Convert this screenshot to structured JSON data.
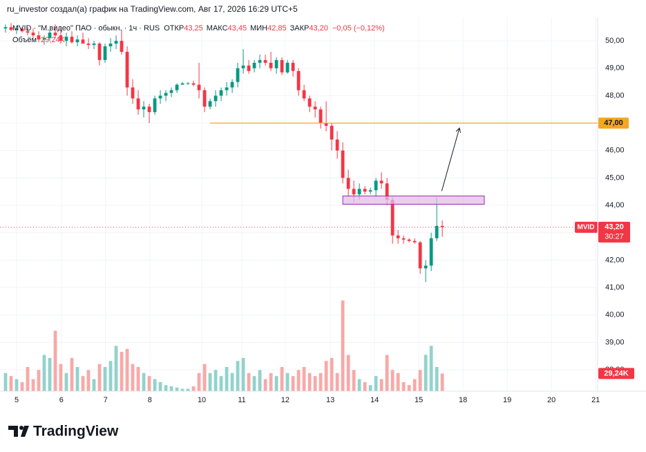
{
  "header": {
    "title": "ru_investor создал(а) график на TradingView.com, Авг 17, 2026 16:29 UTC+5",
    "symbol": "MVID · \"М.видео\" ПАО · обыкн. · 1ч · RUS",
    "ohlc": [
      {
        "label": "ОТКР",
        "value": "43,25"
      },
      {
        "label": "МАКС",
        "value": "43,45"
      },
      {
        "label": "МИН",
        "value": "42,85"
      },
      {
        "label": "ЗАКР",
        "value": "43,20"
      }
    ],
    "change": "−0,05 (−0,12%)",
    "volume_label": "Объём",
    "volume_value": "29,24K"
  },
  "chart_data": {
    "type": "candlestick",
    "x": [
      0,
      1,
      2,
      3,
      4,
      5,
      6,
      7,
      8,
      9,
      10,
      11,
      12,
      13,
      14,
      15,
      16,
      17,
      18,
      19,
      20,
      21,
      22,
      23,
      24,
      25,
      26,
      27,
      28,
      29,
      30,
      31,
      32,
      33,
      34,
      35,
      36,
      37,
      38,
      39,
      40,
      41,
      42,
      43,
      44,
      45,
      46,
      47,
      48,
      49,
      50,
      51,
      52,
      53,
      54,
      55,
      56,
      57,
      58,
      59,
      60,
      61,
      62,
      63,
      64,
      65,
      66,
      67,
      68,
      69,
      70,
      71,
      72,
      73,
      74,
      75,
      76,
      77,
      78,
      79
    ],
    "open": [
      50.45,
      50.5,
      50.4,
      50.45,
      50.35,
      50.3,
      50.2,
      50.05,
      50.1,
      50.3,
      50.2,
      50.0,
      50.15,
      49.95,
      50.05,
      49.9,
      49.85,
      49.9,
      49.3,
      49.8,
      49.9,
      50.0,
      49.6,
      48.3,
      47.9,
      47.5,
      47.6,
      47.4,
      47.9,
      48.0,
      48.1,
      48.2,
      48.4,
      48.45,
      48.45,
      48.4,
      48.2,
      47.6,
      47.8,
      48.0,
      48.2,
      48.3,
      48.5,
      49.0,
      49.1,
      49.0,
      49.2,
      49.3,
      49.2,
      49.0,
      49.3,
      48.85,
      49.2,
      48.9,
      48.2,
      47.9,
      47.6,
      47.5,
      47.0,
      46.9,
      46.4,
      46.0,
      45.0,
      44.6,
      44.4,
      44.6,
      44.5,
      44.55,
      44.9,
      44.8,
      44.2,
      42.9,
      42.8,
      42.75,
      42.7,
      42.65,
      41.7,
      41.8,
      42.8,
      43.25
    ],
    "high": [
      50.6,
      50.65,
      50.55,
      50.5,
      50.5,
      50.45,
      50.35,
      50.2,
      50.4,
      50.6,
      50.5,
      50.3,
      50.35,
      50.2,
      50.3,
      50.1,
      50.0,
      49.95,
      49.9,
      50.1,
      50.2,
      50.4,
      49.8,
      48.6,
      48.2,
      47.8,
      47.7,
      48.0,
      48.2,
      48.2,
      48.3,
      48.45,
      48.5,
      48.5,
      48.55,
      49.2,
      48.3,
      47.9,
      48.2,
      48.3,
      48.5,
      48.6,
      49.2,
      49.7,
      49.3,
      49.3,
      49.5,
      49.5,
      49.6,
      49.4,
      49.4,
      49.3,
      49.3,
      49.0,
      48.4,
      48.0,
      47.8,
      47.6,
      47.8,
      47.0,
      46.7,
      46.3,
      45.3,
      44.9,
      44.8,
      44.7,
      44.65,
      45.0,
      45.2,
      45.0,
      44.3,
      43.1,
      42.9,
      42.8,
      42.8,
      42.7,
      42.0,
      43.0,
      44.3,
      43.45
    ],
    "low": [
      50.3,
      50.35,
      50.25,
      50.3,
      50.2,
      50.1,
      49.95,
      49.85,
      50.0,
      50.1,
      49.9,
      49.8,
      49.9,
      49.8,
      49.9,
      49.7,
      49.7,
      49.1,
      49.2,
      49.6,
      49.7,
      49.5,
      48.0,
      47.7,
      47.3,
      47.2,
      47.0,
      47.3,
      47.7,
      47.8,
      47.95,
      48.1,
      48.4,
      48.4,
      48.35,
      47.9,
      47.4,
      47.5,
      47.6,
      47.8,
      48.0,
      48.1,
      48.3,
      48.8,
      48.8,
      48.85,
      49.0,
      49.1,
      48.9,
      48.8,
      48.75,
      48.8,
      48.7,
      48.0,
      47.8,
      47.4,
      47.2,
      46.8,
      46.7,
      46.0,
      45.7,
      44.8,
      44.3,
      44.1,
      44.2,
      44.4,
      44.4,
      44.3,
      44.6,
      44.0,
      42.6,
      42.6,
      42.6,
      42.65,
      42.6,
      41.5,
      41.2,
      41.6,
      42.7,
      42.85
    ],
    "close": [
      50.5,
      50.4,
      50.45,
      50.35,
      50.3,
      50.2,
      50.05,
      50.1,
      50.3,
      50.2,
      50.0,
      50.15,
      49.95,
      50.05,
      49.9,
      49.85,
      49.9,
      49.3,
      49.8,
      49.9,
      50.0,
      49.6,
      48.3,
      47.9,
      47.5,
      47.6,
      47.4,
      47.9,
      48.0,
      48.1,
      48.2,
      48.4,
      48.45,
      48.45,
      48.4,
      48.2,
      47.6,
      47.8,
      48.0,
      48.2,
      48.3,
      48.5,
      49.0,
      49.1,
      48.9,
      49.2,
      49.3,
      49.2,
      49.0,
      49.3,
      48.85,
      49.2,
      48.9,
      48.2,
      47.9,
      47.6,
      47.5,
      47.0,
      46.9,
      46.4,
      46.0,
      45.0,
      44.6,
      44.4,
      44.6,
      44.5,
      44.55,
      44.9,
      44.8,
      44.2,
      42.9,
      42.8,
      42.75,
      42.7,
      42.65,
      41.7,
      41.8,
      42.8,
      43.25,
      43.2
    ],
    "volume": [
      30,
      25,
      20,
      15,
      40,
      20,
      35,
      60,
      55,
      100,
      45,
      30,
      55,
      40,
      25,
      35,
      20,
      45,
      40,
      50,
      75,
      65,
      70,
      45,
      40,
      30,
      25,
      20,
      15,
      10,
      8,
      6,
      4,
      4,
      8,
      30,
      45,
      30,
      35,
      25,
      40,
      30,
      50,
      55,
      30,
      25,
      35,
      20,
      30,
      25,
      40,
      30,
      25,
      35,
      40,
      30,
      25,
      30,
      50,
      55,
      30,
      150,
      60,
      35,
      20,
      15,
      10,
      25,
      20,
      60,
      35,
      30,
      15,
      10,
      20,
      35,
      60,
      75,
      40,
      29.24
    ],
    "xlim": [
      -1,
      107.1
    ],
    "xticks": [
      {
        "value": 2,
        "label": "5"
      },
      {
        "value": 10.1,
        "label": "6"
      },
      {
        "value": 18.1,
        "label": "7"
      },
      {
        "value": 26.1,
        "label": "8"
      },
      {
        "value": 35.5,
        "label": "10"
      },
      {
        "value": 42.75,
        "label": "11"
      },
      {
        "value": 50.6,
        "label": "12"
      },
      {
        "value": 58.75,
        "label": "13"
      },
      {
        "value": 66.75,
        "label": "14"
      },
      {
        "value": 74.75,
        "label": "15"
      },
      {
        "value": 82.75,
        "label": "18"
      },
      {
        "value": 90.75,
        "label": "19"
      },
      {
        "value": 98.75,
        "label": "20"
      },
      {
        "value": 106.75,
        "label": "21"
      }
    ],
    "ylim": [
      37.22,
      50.86
    ],
    "yticks": [
      {
        "value": 38,
        "label": "38,00"
      },
      {
        "value": 39,
        "label": "39,00"
      },
      {
        "value": 40,
        "label": "40,00"
      },
      {
        "value": 41,
        "label": "41,00"
      },
      {
        "value": 42,
        "label": "42,00"
      },
      {
        "value": 43,
        "label": "43,00"
      },
      {
        "value": 44,
        "label": "44,00"
      },
      {
        "value": 45,
        "label": "45,00"
      },
      {
        "value": 46,
        "label": "46,00"
      },
      {
        "value": 47,
        "label": "47,00"
      },
      {
        "value": 48,
        "label": "48,00"
      },
      {
        "value": 49,
        "label": "49,00"
      },
      {
        "value": 50,
        "label": "50,00"
      }
    ],
    "volume_lim": [
      0,
      160
    ],
    "grid": true,
    "up_color": "#089981",
    "down_color": "#f23645",
    "volume_up_color": "#92d2cc",
    "volume_down_color": "#f7a9a7",
    "symbol_tag": "MVID",
    "last_price_label": "43,20",
    "countdown": "30:27",
    "last_volume_label": "29,24K",
    "drawings": {
      "hline": {
        "value": 47,
        "label": "47,00",
        "x_start": 37,
        "color": "#f5a623"
      },
      "rect": {
        "x": [
          61,
          86.6
        ],
        "y": [
          44.04,
          44.34
        ],
        "color": "#e1bee7"
      },
      "arrow": {
        "x": [
          78.9,
          82.1
        ],
        "y": [
          44.52,
          46.82
        ]
      }
    }
  },
  "footer": {
    "brand": "TradingView"
  }
}
